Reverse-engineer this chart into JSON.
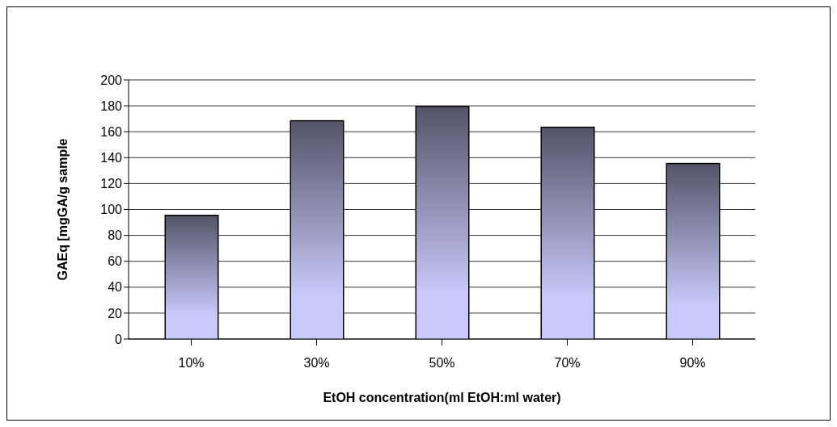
{
  "chart_data": {
    "type": "bar",
    "xlabel": "EtOH concentration(ml EtOH:ml water)",
    "ylabel": "GAEq [mgGA/g sample",
    "categories": [
      "10%",
      "30%",
      "50%",
      "70%",
      "90%"
    ],
    "values": [
      95,
      168,
      179,
      163,
      135
    ],
    "color": "#c8c8fa",
    "ylim": [
      0,
      200
    ],
    "yticks": [
      0,
      20,
      40,
      60,
      80,
      100,
      120,
      140,
      160,
      180,
      200
    ],
    "grid": "y"
  }
}
